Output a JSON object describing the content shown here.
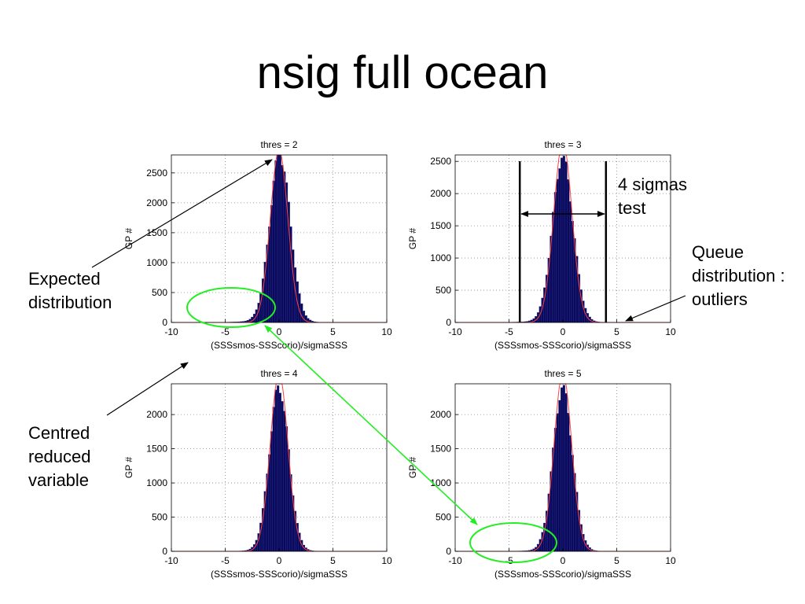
{
  "slide": {
    "title": "nsig full ocean"
  },
  "chart_data": [
    {
      "type": "bar",
      "title": "thres = 2",
      "xlabel": "(SSSsmos-SSScorio)/sigmaSSS",
      "ylabel": "GP #",
      "xlim": [
        -10,
        10
      ],
      "ylim": [
        0,
        2800
      ],
      "xticks": [
        -10,
        -5,
        0,
        5,
        10
      ],
      "yticks": [
        0,
        500,
        1000,
        1500,
        2000,
        2500
      ],
      "grid": true,
      "histogram": {
        "peak": 2760,
        "center": 0.1,
        "sigma": 0.95,
        "tail_left": 120,
        "tail_right": 25,
        "bin_width": 0.2
      },
      "expected_curve": {
        "peak": 2880,
        "center": 0.0,
        "sigma": 0.82,
        "color": "#ff4040"
      },
      "bar_color": "#0a0a5a"
    },
    {
      "type": "bar",
      "title": "thres = 3",
      "xlabel": "(SSSsmos-SSScorio)/sigmaSSS",
      "ylabel": "GP #",
      "xlim": [
        -10,
        10
      ],
      "ylim": [
        0,
        2600
      ],
      "xticks": [
        -10,
        -5,
        0,
        5,
        10
      ],
      "yticks": [
        0,
        500,
        1000,
        1500,
        2000,
        2500
      ],
      "grid": true,
      "histogram": {
        "peak": 2520,
        "center": 0.0,
        "sigma": 0.95,
        "tail_left": 90,
        "tail_right": 20,
        "bin_width": 0.2
      },
      "expected_curve": {
        "peak": 2800,
        "center": 0.0,
        "sigma": 0.85,
        "color": "#ff4040"
      },
      "bar_color": "#0a0a5a"
    },
    {
      "type": "bar",
      "title": "thres = 4",
      "xlabel": "(SSSsmos-SSScorio)/sigmaSSS",
      "ylabel": "GP #",
      "xlim": [
        -10,
        10
      ],
      "ylim": [
        0,
        2450
      ],
      "xticks": [
        -10,
        -5,
        0,
        5,
        10
      ],
      "yticks": [
        0,
        500,
        1000,
        1500,
        2000
      ],
      "grid": true,
      "histogram": {
        "peak": 2380,
        "center": 0.0,
        "sigma": 0.9,
        "tail_left": 40,
        "tail_right": 15,
        "bin_width": 0.2
      },
      "expected_curve": {
        "peak": 2600,
        "center": 0.0,
        "sigma": 0.82,
        "color": "#ff4040"
      },
      "bar_color": "#0a0a5a"
    },
    {
      "type": "bar",
      "title": "thres = 5",
      "xlabel": "(SSSsmos-SSScorio)/sigmaSSS",
      "ylabel": "GP #",
      "xlim": [
        -10,
        10
      ],
      "ylim": [
        0,
        2450
      ],
      "xticks": [
        -10,
        -5,
        0,
        5,
        10
      ],
      "yticks": [
        0,
        500,
        1000,
        1500,
        2000
      ],
      "grid": true,
      "histogram": {
        "peak": 2360,
        "center": 0.0,
        "sigma": 0.9,
        "tail_left": 60,
        "tail_right": 15,
        "bin_width": 0.2
      },
      "expected_curve": {
        "peak": 2600,
        "center": 0.0,
        "sigma": 0.82,
        "color": "#ff4040"
      },
      "bar_color": "#0a0a5a"
    }
  ],
  "annotations": {
    "expected": [
      "Expected",
      "distribution"
    ],
    "centred": [
      "Centred",
      "reduced",
      "variable"
    ],
    "sigmas": [
      "4 sigmas",
      "test"
    ],
    "queue": [
      "Queue",
      "distribution :",
      "outliers"
    ],
    "sigma_test_lines_x": [
      -4,
      4
    ],
    "highlight_color": "#22ee22"
  }
}
